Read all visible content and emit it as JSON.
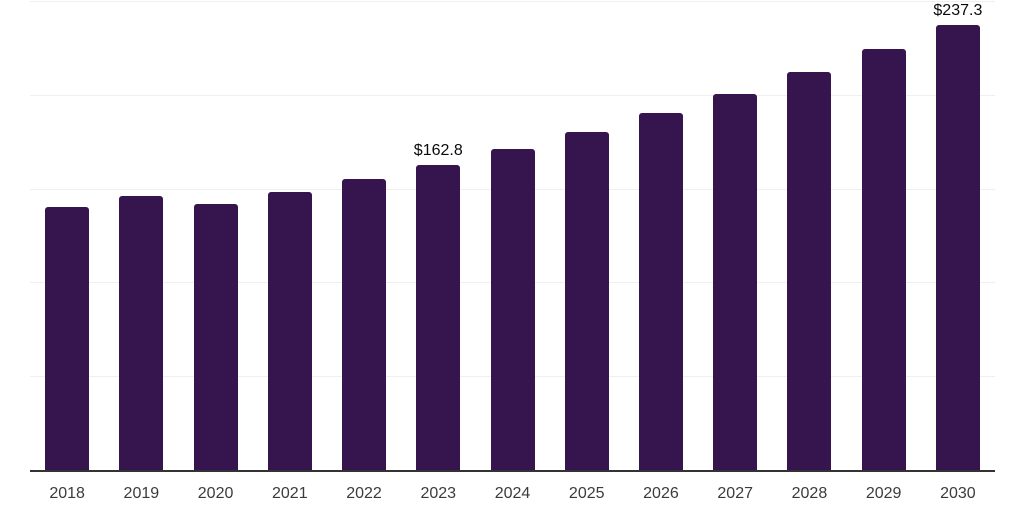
{
  "chart_data": {
    "type": "bar",
    "title": "",
    "xlabel": "",
    "ylabel": "",
    "categories": [
      "2018",
      "2019",
      "2020",
      "2021",
      "2022",
      "2023",
      "2024",
      "2025",
      "2026",
      "2027",
      "2028",
      "2029",
      "2030"
    ],
    "values": [
      140.2,
      145.8,
      141.8,
      148.2,
      155.0,
      162.8,
      171.3,
      180.3,
      190.5,
      200.2,
      211.9,
      224.2,
      237.3
    ],
    "value_labels": [
      "",
      "",
      "",
      "",
      "",
      "$162.8",
      "",
      "",
      "",
      "",
      "",
      "",
      "$237.3"
    ],
    "ylim": [
      0,
      250
    ],
    "gridline_step": 50,
    "grid": true,
    "legend": false,
    "y_tick_labels_visible": false,
    "colors": {
      "bar": "#36154E",
      "axis": "#333333",
      "gridline": "#EFEFEF",
      "tick_label": "#3B3B3B",
      "value_label": "#0B0B0B",
      "background": "#FFFFFF"
    }
  }
}
